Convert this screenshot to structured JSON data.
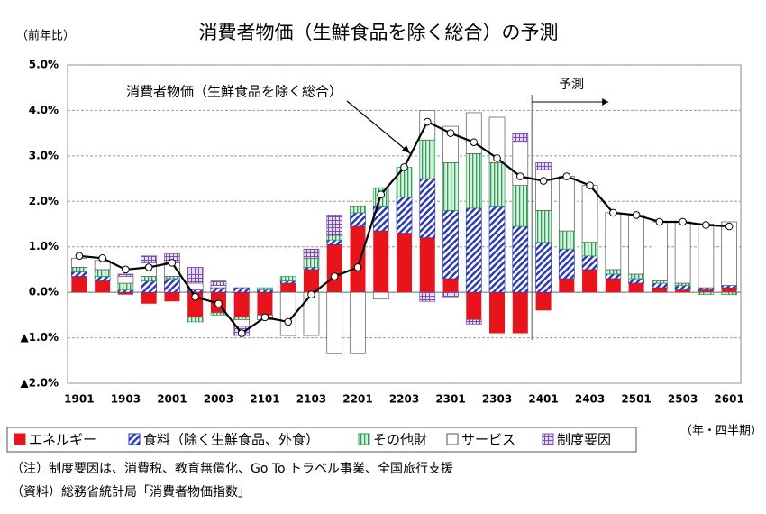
{
  "chart_data": {
    "type": "bar",
    "title": "消費者物価（生鮮食品を除く総合）の予測",
    "y_axis_label": "（前年比）",
    "x_axis_label": "（年・四半期）",
    "forecast_label": "予測",
    "notes": [
      "（注）制度要因は、消費税、教育無償化、Go To トラベル事業、全国旅行支援",
      "（資料）総務省統計局「消費者物価指数」"
    ],
    "categories": [
      "1901",
      null,
      "1903",
      null,
      "2001",
      null,
      "2003",
      null,
      "2101",
      null,
      "2103",
      null,
      "2201",
      null,
      "2203",
      null,
      "2301",
      null,
      "2303",
      null,
      "2401",
      null,
      "2403",
      null,
      "2501",
      null,
      "2503",
      null,
      "2601"
    ],
    "stacked": true,
    "series": [
      {
        "name": "エネルギー",
        "color": "#e8141c",
        "values": [
          0.35,
          0.25,
          -0.05,
          -0.25,
          -0.2,
          -0.55,
          -0.45,
          -0.55,
          -0.5,
          0.2,
          0.5,
          1.05,
          1.45,
          1.35,
          1.3,
          1.2,
          0.3,
          -0.6,
          -0.9,
          -0.9,
          -0.4,
          0.3,
          0.5,
          0.3,
          0.2,
          0.1,
          0.05,
          0.05,
          0.1
        ]
      },
      {
        "name": "食料（除く生鮮食品、外食）",
        "color": "#2e3cb4",
        "values": [
          0.1,
          0.1,
          0.05,
          0.25,
          0.3,
          0.05,
          0.1,
          0.1,
          0.05,
          0.05,
          0.05,
          0.1,
          0.3,
          0.55,
          0.8,
          1.3,
          1.5,
          1.85,
          1.9,
          1.45,
          1.1,
          0.65,
          0.3,
          0.1,
          0.1,
          0.1,
          0.1,
          0.05,
          0.05
        ]
      },
      {
        "name": "その他財",
        "color": "#2e9e5a",
        "values": [
          0.1,
          0.15,
          0.15,
          0.1,
          0.05,
          -0.1,
          -0.05,
          -0.05,
          0.05,
          0.1,
          0.2,
          0.1,
          0.15,
          0.4,
          0.65,
          0.85,
          1.05,
          1.2,
          0.95,
          0.9,
          0.7,
          0.4,
          0.3,
          0.1,
          0.1,
          0.05,
          0.05,
          -0.05,
          -0.05
        ]
      },
      {
        "name": "サービス",
        "color": "#ffffff",
        "values": [
          0.2,
          0.2,
          0.15,
          0.3,
          0.3,
          0.15,
          0.05,
          -0.15,
          -0.1,
          -0.95,
          -0.95,
          -1.35,
          -1.35,
          -0.15,
          0.0,
          0.65,
          0.8,
          0.9,
          1.0,
          0.95,
          0.9,
          1.2,
          1.25,
          1.25,
          1.3,
          1.3,
          1.35,
          1.4,
          1.4
        ]
      },
      {
        "name": "制度要因",
        "color": "#7b52a8",
        "values": [
          0,
          0,
          0.05,
          0.15,
          0.2,
          0.35,
          0.1,
          -0.2,
          0,
          0,
          0.2,
          0.45,
          0,
          0,
          0,
          -0.2,
          -0.1,
          -0.1,
          0,
          0.2,
          0.15,
          0,
          0,
          0,
          0,
          0,
          0,
          0,
          0
        ]
      }
    ],
    "line": {
      "name": "消費者物価（生鮮食品を除く総合）",
      "color": "#000000",
      "values": [
        0.8,
        0.75,
        0.5,
        0.55,
        0.65,
        -0.1,
        -0.25,
        -0.9,
        -0.55,
        -0.65,
        -0.05,
        0.35,
        0.55,
        2.15,
        2.75,
        3.75,
        3.5,
        3.3,
        2.95,
        2.55,
        2.45,
        2.55,
        2.35,
        1.75,
        1.7,
        1.55,
        1.55,
        1.48,
        1.45
      ]
    },
    "ylim": [
      -2,
      5
    ],
    "yticks": [
      {
        "value": -2,
        "label": "▲2.0%"
      },
      {
        "value": -1,
        "label": "▲1.0%"
      },
      {
        "value": 0,
        "label": "0.0%"
      },
      {
        "value": 1,
        "label": "1.0%"
      },
      {
        "value": 2,
        "label": "2.0%"
      },
      {
        "value": 3,
        "label": "3.0%"
      },
      {
        "value": 4,
        "label": "4.0%"
      },
      {
        "value": 5,
        "label": "5.0%"
      }
    ],
    "grid": true
  }
}
